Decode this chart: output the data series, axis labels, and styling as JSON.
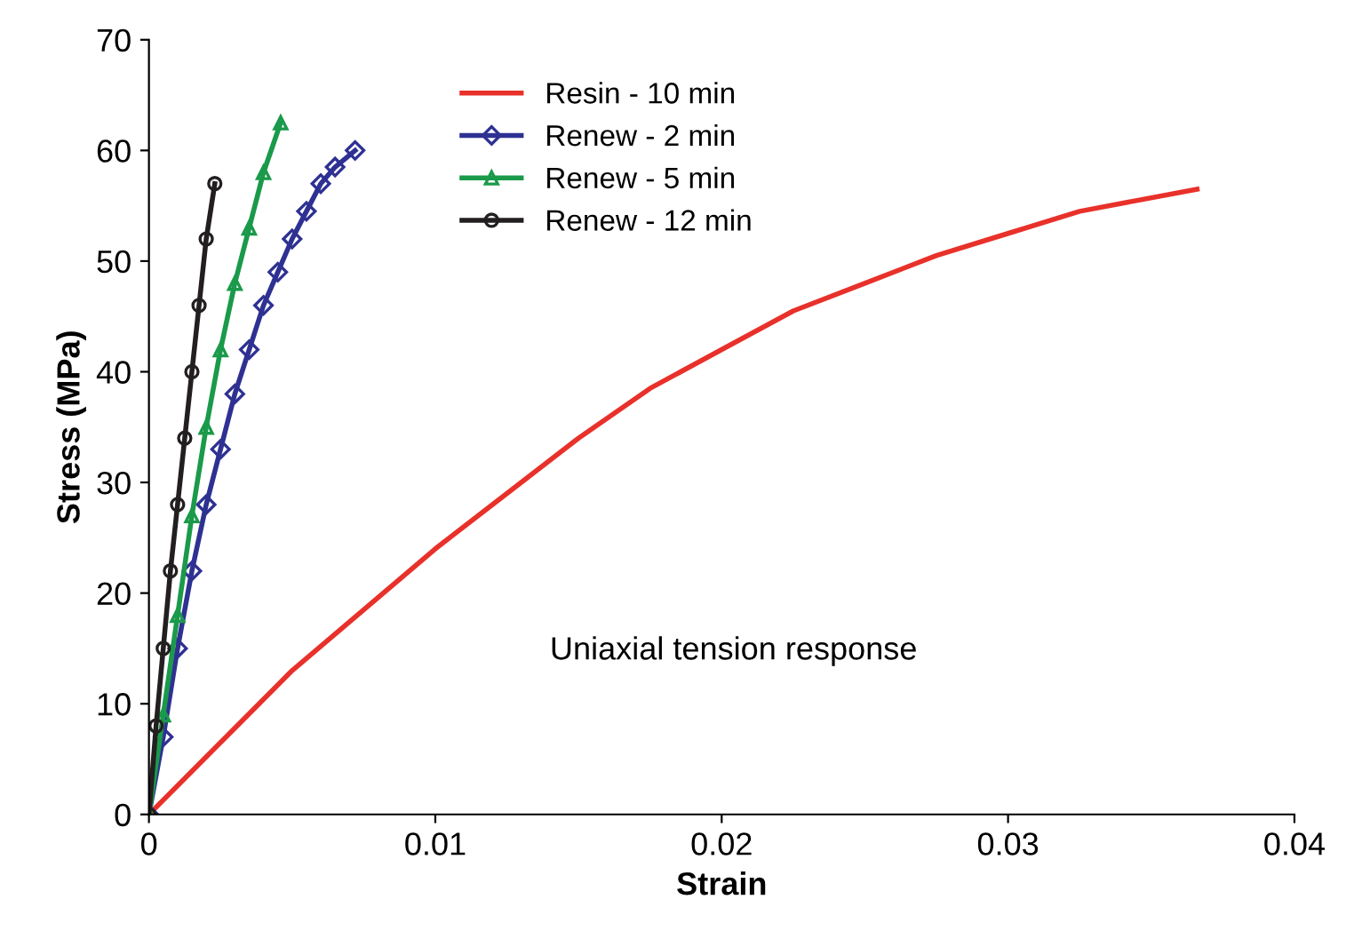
{
  "chart_data": {
    "type": "line",
    "xlabel": "Strain",
    "ylabel": "Stress (MPa)",
    "xlim": [
      0,
      0.04
    ],
    "ylim": [
      0,
      70
    ],
    "xticks": [
      0,
      0.01,
      0.02,
      0.03,
      0.04
    ],
    "yticks": [
      0,
      10,
      20,
      30,
      40,
      50,
      60,
      70
    ],
    "grid": false,
    "legend": "top",
    "annotations": [
      "Uniaxial tension response"
    ],
    "series": [
      {
        "name": "Resin - 10 min",
        "color": "#e8312a",
        "marker": "none",
        "x": [
          0,
          0.0025,
          0.005,
          0.0075,
          0.01,
          0.0125,
          0.015,
          0.0175,
          0.02,
          0.0225,
          0.025,
          0.0275,
          0.03,
          0.0325,
          0.0366
        ],
        "values": [
          0,
          6.5,
          13,
          18.5,
          24,
          29,
          34,
          38.5,
          42,
          45.5,
          48,
          50.5,
          52.5,
          54.5,
          56.5
        ]
      },
      {
        "name": "Renew - 2 min",
        "color": "#2e3192",
        "marker": "diamond",
        "x": [
          0,
          0.0005,
          0.001,
          0.0015,
          0.002,
          0.0025,
          0.003,
          0.0035,
          0.004,
          0.0045,
          0.005,
          0.0055,
          0.006,
          0.0065,
          0.0072
        ],
        "values": [
          0,
          7,
          15,
          22,
          28,
          33,
          38,
          42,
          46,
          49,
          52,
          54.5,
          57,
          58.5,
          60
        ]
      },
      {
        "name": "Renew - 5 min",
        "color": "#1a9a4a",
        "marker": "triangle",
        "x": [
          0,
          0.0005,
          0.001,
          0.0015,
          0.002,
          0.0025,
          0.003,
          0.0035,
          0.004,
          0.0046
        ],
        "values": [
          0,
          9,
          18,
          27,
          35,
          42,
          48,
          53,
          58,
          62.5
        ]
      },
      {
        "name": "Renew - 12 min",
        "color": "#231f20",
        "marker": "circle",
        "x": [
          0,
          0.00025,
          0.0005,
          0.00075,
          0.001,
          0.00125,
          0.0015,
          0.00175,
          0.002,
          0.0023
        ],
        "values": [
          0,
          8,
          15,
          22,
          28,
          34,
          40,
          46,
          52,
          57
        ]
      }
    ]
  }
}
